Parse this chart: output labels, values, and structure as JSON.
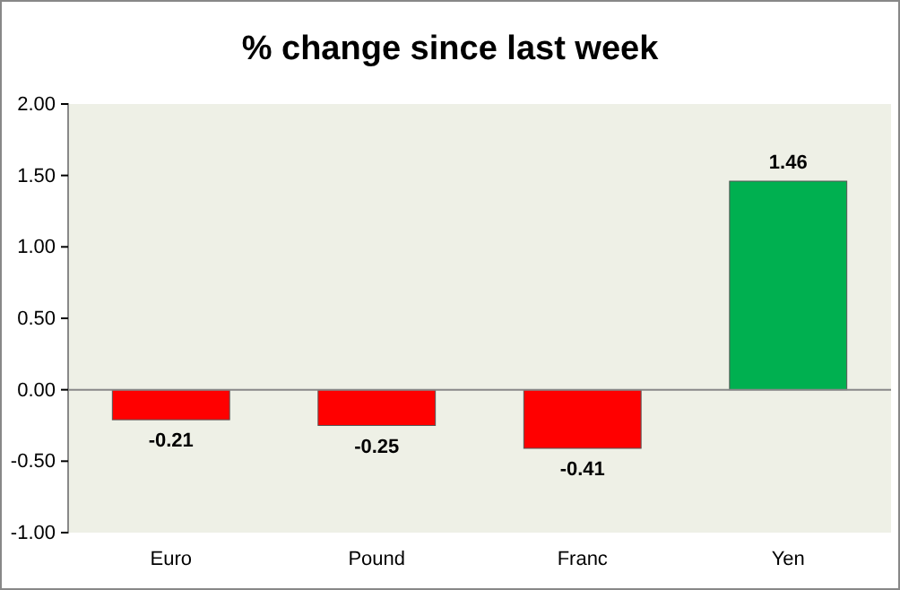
{
  "chart_data": {
    "type": "bar",
    "title": "% change since last week",
    "categories": [
      "Euro",
      "Pound",
      "Franc",
      "Yen"
    ],
    "values": [
      -0.21,
      -0.25,
      -0.41,
      1.46
    ],
    "colors": [
      "#ff0000",
      "#ff0000",
      "#ff0000",
      "#00b050"
    ],
    "ylim": [
      -1,
      2
    ],
    "yticks": [
      {
        "value": -1,
        "label": "-1.00"
      },
      {
        "value": -0.5,
        "label": "-0.50"
      },
      {
        "value": 0,
        "label": "0.00"
      },
      {
        "value": 0.5,
        "label": "0.50"
      },
      {
        "value": 1,
        "label": "1.00"
      },
      {
        "value": 1.5,
        "label": "1.50"
      },
      {
        "value": 2,
        "label": "2.00"
      }
    ],
    "data_labels": true
  }
}
